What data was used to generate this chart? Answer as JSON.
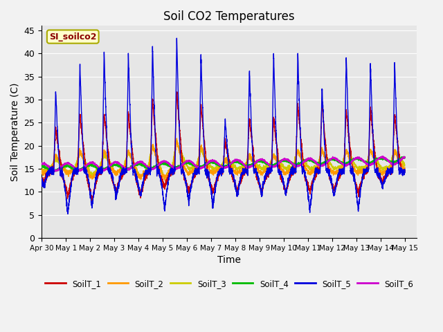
{
  "title": "Soil CO2 Temperatures",
  "xlabel": "Time",
  "ylabel": "Soil Temperature (C)",
  "annotation": "SI_soilco2",
  "xlim_days": [
    0,
    15.5
  ],
  "ylim": [
    0,
    46
  ],
  "yticks": [
    0,
    5,
    10,
    15,
    20,
    25,
    30,
    35,
    40,
    45
  ],
  "xtick_labels": [
    "Apr 30",
    "May 1",
    "May 2",
    "May 3",
    "May 4",
    "May 5",
    "May 6",
    "May 7",
    "May 8",
    "May 9",
    "May 10",
    "May 11",
    "May 12",
    "May 13",
    "May 14",
    "May 15"
  ],
  "xtick_positions": [
    0,
    1,
    2,
    3,
    4,
    5,
    6,
    7,
    8,
    9,
    10,
    11,
    12,
    13,
    14,
    15
  ],
  "background_color": "#e6e6e6",
  "grid_color": "#ffffff",
  "fig_bgcolor": "#f2f2f2",
  "colors": {
    "SoilT_1": "#cc0000",
    "SoilT_2": "#ff9900",
    "SoilT_3": "#cccc00",
    "SoilT_4": "#00bb00",
    "SoilT_5": "#0000dd",
    "SoilT_6": "#cc00cc"
  },
  "linewidths": {
    "SoilT_1": 1.0,
    "SoilT_2": 1.0,
    "SoilT_3": 1.0,
    "SoilT_4": 1.5,
    "SoilT_5": 1.0,
    "SoilT_6": 1.2
  }
}
